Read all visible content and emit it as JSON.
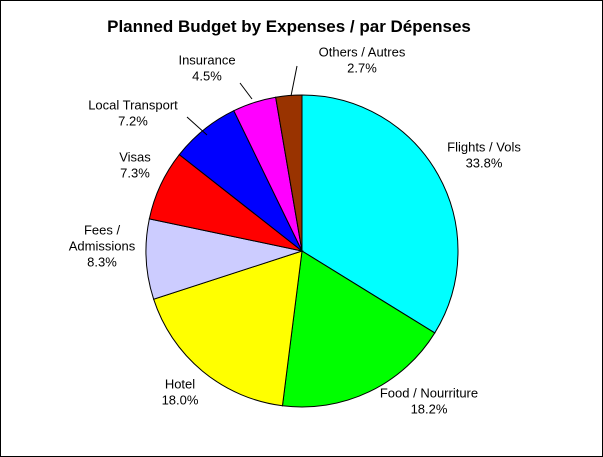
{
  "chart_data": {
    "type": "pie",
    "title": "Planned Budget by Expenses / par Dépenses",
    "slices": [
      {
        "label_lines": [
          "Flights / Vols"
        ],
        "percent_label": "33.8%",
        "value": 33.8,
        "color": "#00ffff"
      },
      {
        "label_lines": [
          "Food / Nourriture"
        ],
        "percent_label": "18.2%",
        "value": 18.2,
        "color": "#00ff00"
      },
      {
        "label_lines": [
          "Hotel"
        ],
        "percent_label": "18.0%",
        "value": 18.0,
        "color": "#ffff00"
      },
      {
        "label_lines": [
          "Fees /",
          "Admissions"
        ],
        "percent_label": "8.3%",
        "value": 8.3,
        "color": "#ccccff"
      },
      {
        "label_lines": [
          "Visas"
        ],
        "percent_label": "7.3%",
        "value": 7.3,
        "color": "#ff0000"
      },
      {
        "label_lines": [
          "Local Transport"
        ],
        "percent_label": "7.2%",
        "value": 7.2,
        "color": "#0000ff"
      },
      {
        "label_lines": [
          "Insurance"
        ],
        "percent_label": "4.5%",
        "value": 4.5,
        "color": "#ff00ff"
      },
      {
        "label_lines": [
          "Others / Autres"
        ],
        "percent_label": "2.7%",
        "value": 2.7,
        "color": "#993300"
      }
    ]
  }
}
